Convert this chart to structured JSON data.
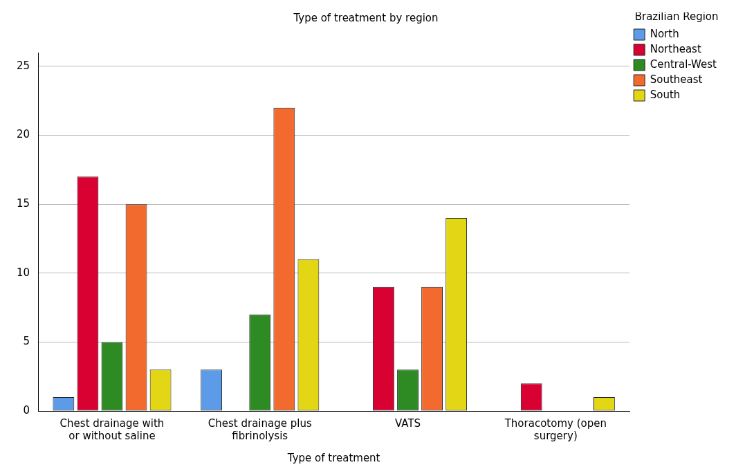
{
  "chart_data": {
    "type": "bar",
    "title": "Type of treatment by region",
    "xlabel": "Type of treatment",
    "legend_title": "Brazilian Region",
    "categories": [
      "Chest drainage with or without saline",
      "Chest drainage plus fibrinolysis",
      "VATS",
      "Thoracotomy (open surgery)"
    ],
    "series": [
      {
        "name": "North",
        "color": "#5b9be8",
        "values": [
          1,
          3,
          null,
          null
        ]
      },
      {
        "name": "Northeast",
        "color": "#d90032",
        "values": [
          17,
          null,
          9,
          2
        ]
      },
      {
        "name": "Central-West",
        "color": "#2e8b24",
        "values": [
          5,
          7,
          3,
          null
        ]
      },
      {
        "name": "Southeast",
        "color": "#f26a2e",
        "values": [
          15,
          22,
          9,
          null
        ]
      },
      {
        "name": "South",
        "color": "#e3d614",
        "values": [
          3,
          11,
          14,
          1
        ]
      }
    ],
    "ylim": [
      0,
      26
    ],
    "yticks": [
      0,
      5,
      10,
      15,
      20,
      25
    ],
    "grid": "y",
    "legend": "top right"
  }
}
